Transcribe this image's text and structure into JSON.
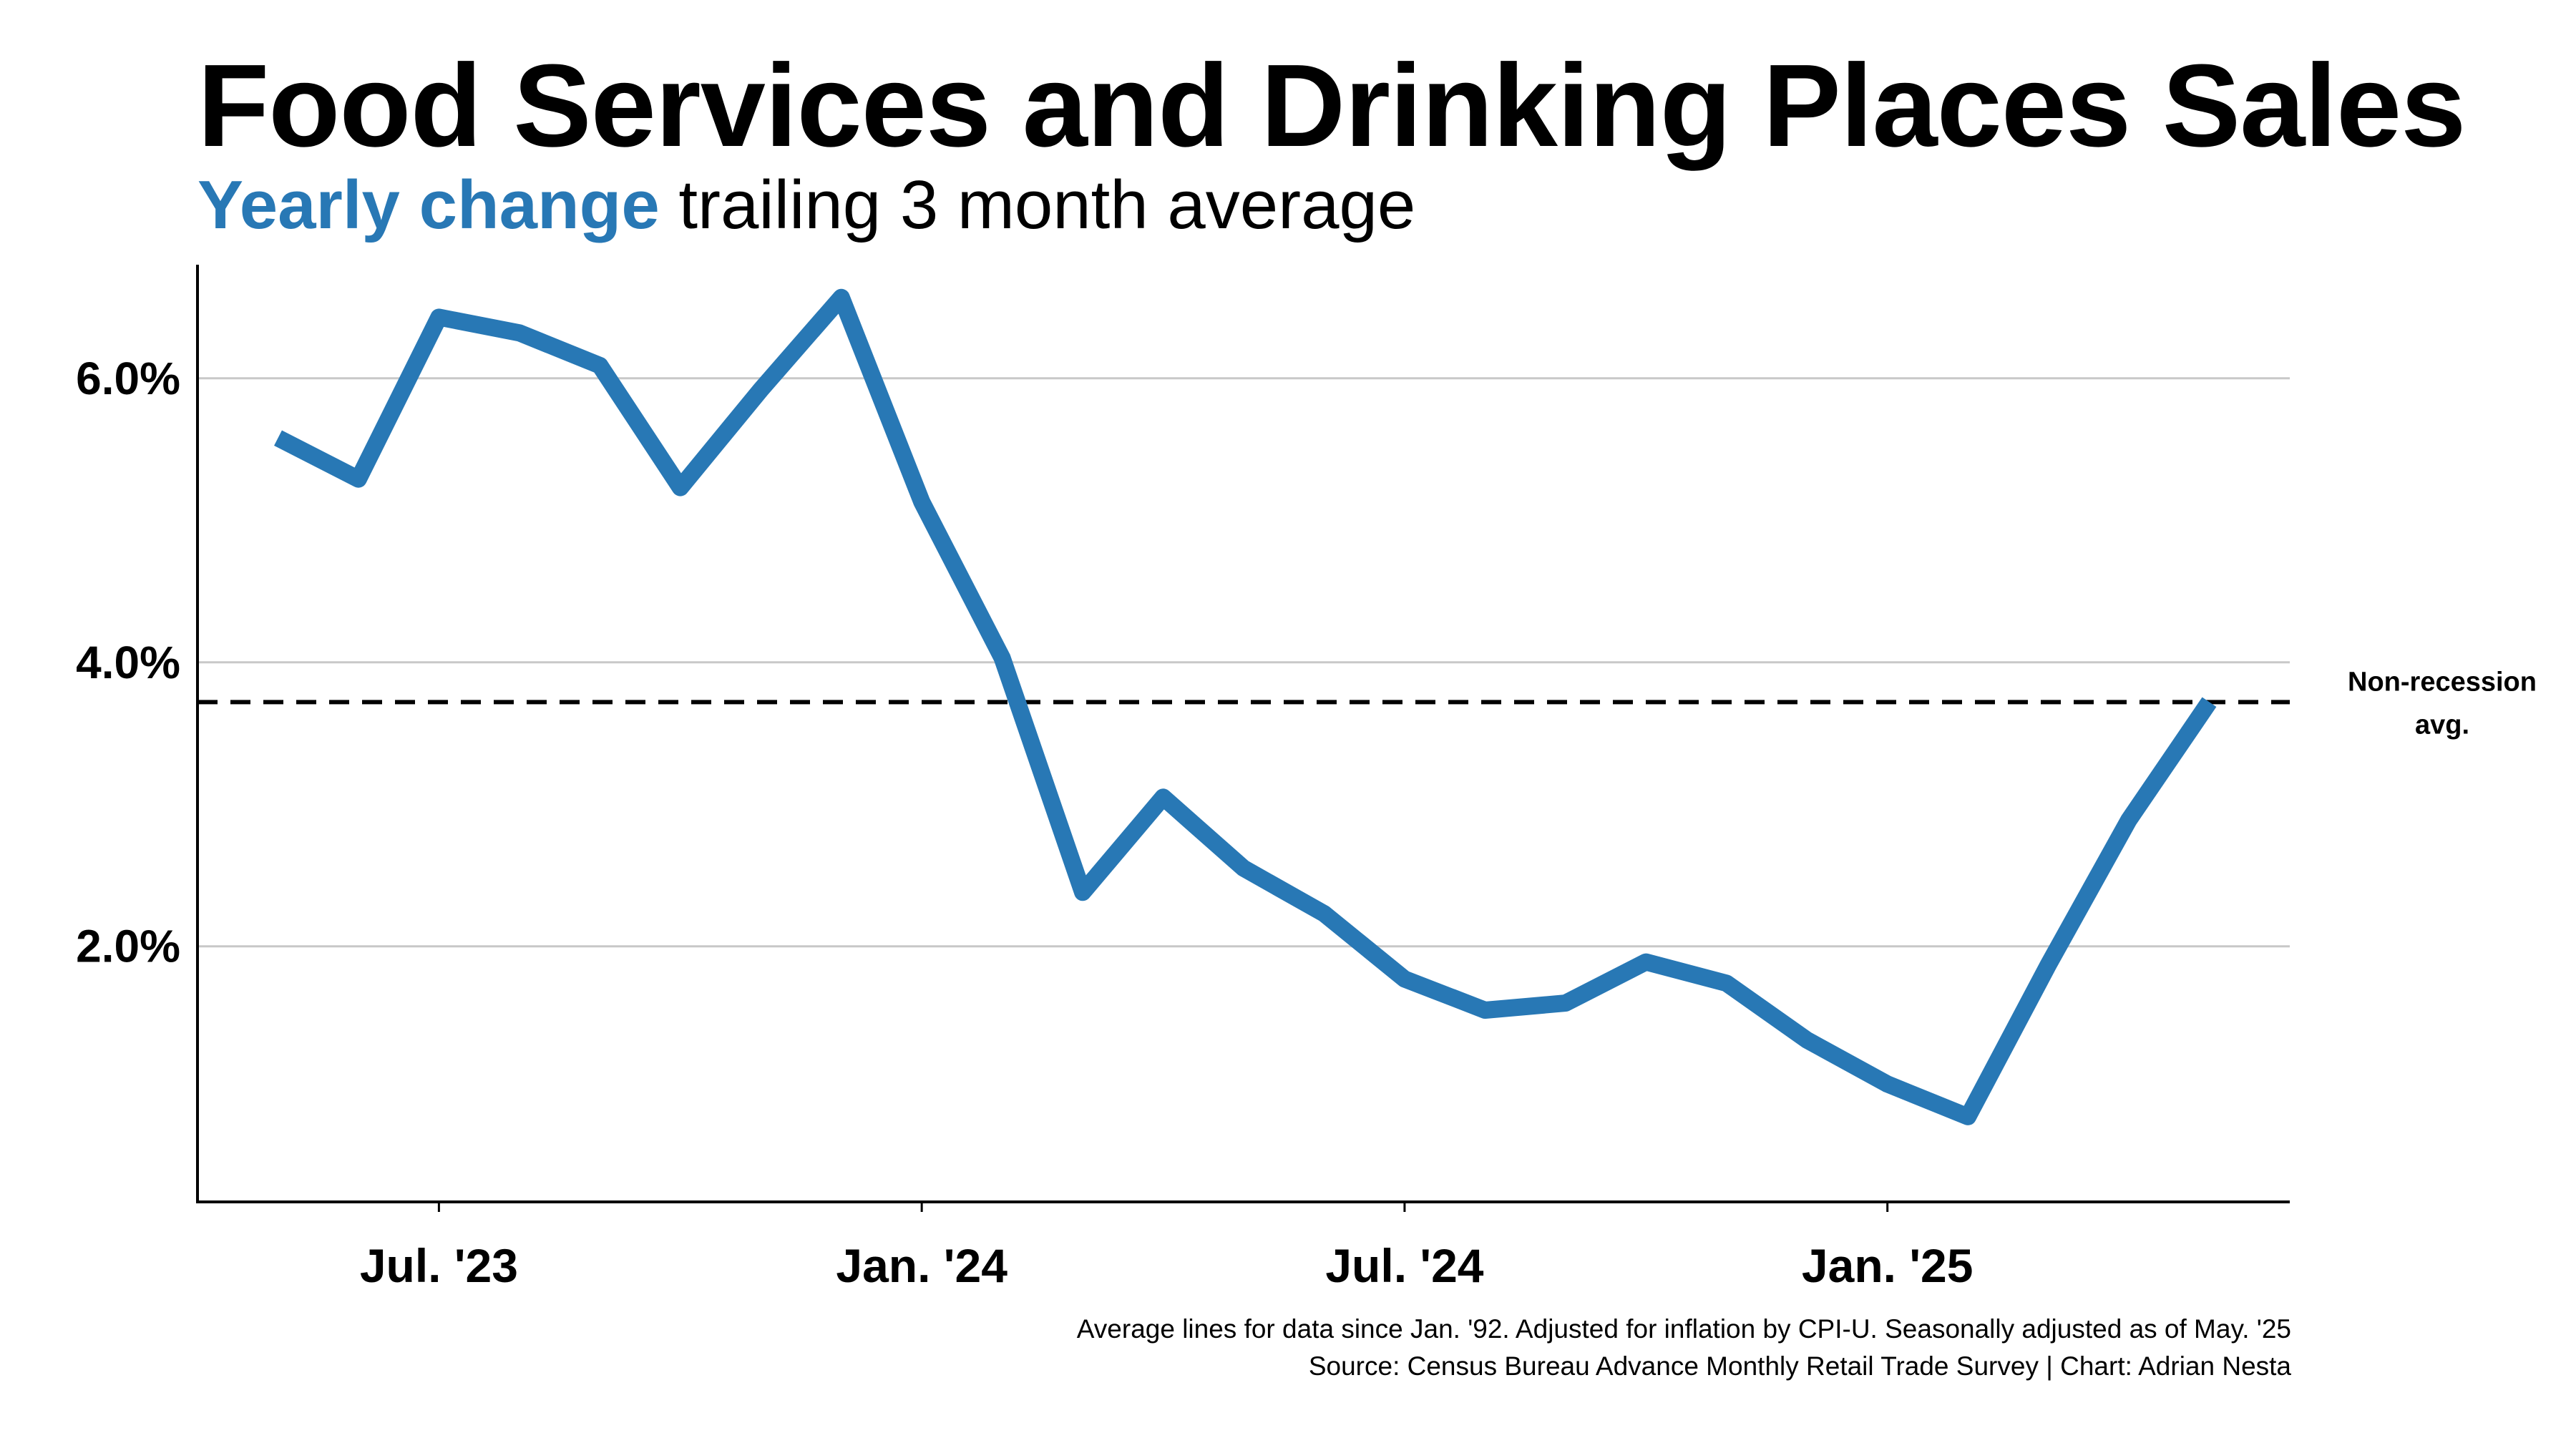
{
  "title": "Food Services and Drinking Places Sales",
  "subtitle": {
    "highlight": "Yearly change",
    "rest": " trailing 3 month average"
  },
  "colors": {
    "series": "#2878b5",
    "grid": "#c8c8c8",
    "axis": "#000000",
    "reference": "#000000"
  },
  "chart_data": {
    "type": "line",
    "title": "Food Services and Drinking Places Sales",
    "subtitle": "Yearly change trailing 3 month average",
    "xlabel": "",
    "ylabel": "",
    "x_start": "2023-05",
    "x_end": "2025-05",
    "xlim": [
      "2023-04",
      "2025-06"
    ],
    "ylim": [
      0.2,
      6.8
    ],
    "grid": "horizontal",
    "x_ticks": [
      {
        "month": "2023-07",
        "label": "Jul. '23"
      },
      {
        "month": "2024-01",
        "label": "Jan. '24"
      },
      {
        "month": "2024-07",
        "label": "Jul. '24"
      },
      {
        "month": "2025-01",
        "label": "Jan. '25"
      }
    ],
    "y_ticks": [
      {
        "value": 2.0,
        "label": "2.0%"
      },
      {
        "value": 4.0,
        "label": "4.0%"
      },
      {
        "value": 6.0,
        "label": "6.0%"
      }
    ],
    "series": [
      {
        "values": [
          5.58,
          5.29,
          6.43,
          6.32,
          6.09,
          5.23,
          5.92,
          6.57,
          5.13,
          4.03,
          2.38,
          3.05,
          2.55,
          2.23,
          1.77,
          1.55,
          1.6,
          1.89,
          1.74,
          1.34,
          1.03,
          0.8,
          1.87,
          2.89,
          3.72
        ]
      }
    ],
    "reference_line": {
      "value": 3.72,
      "label_line1": "Non-recession",
      "label_line2": "avg.",
      "style": "dashed"
    }
  },
  "footnotes": {
    "line1": "Average lines for data since Jan. '92. Adjusted for inflation by CPI-U. Seasonally adjusted as of May. '25",
    "line2": "Source: Census Bureau Advance Monthly Retail Trade Survey | Chart: Adrian Nesta"
  }
}
